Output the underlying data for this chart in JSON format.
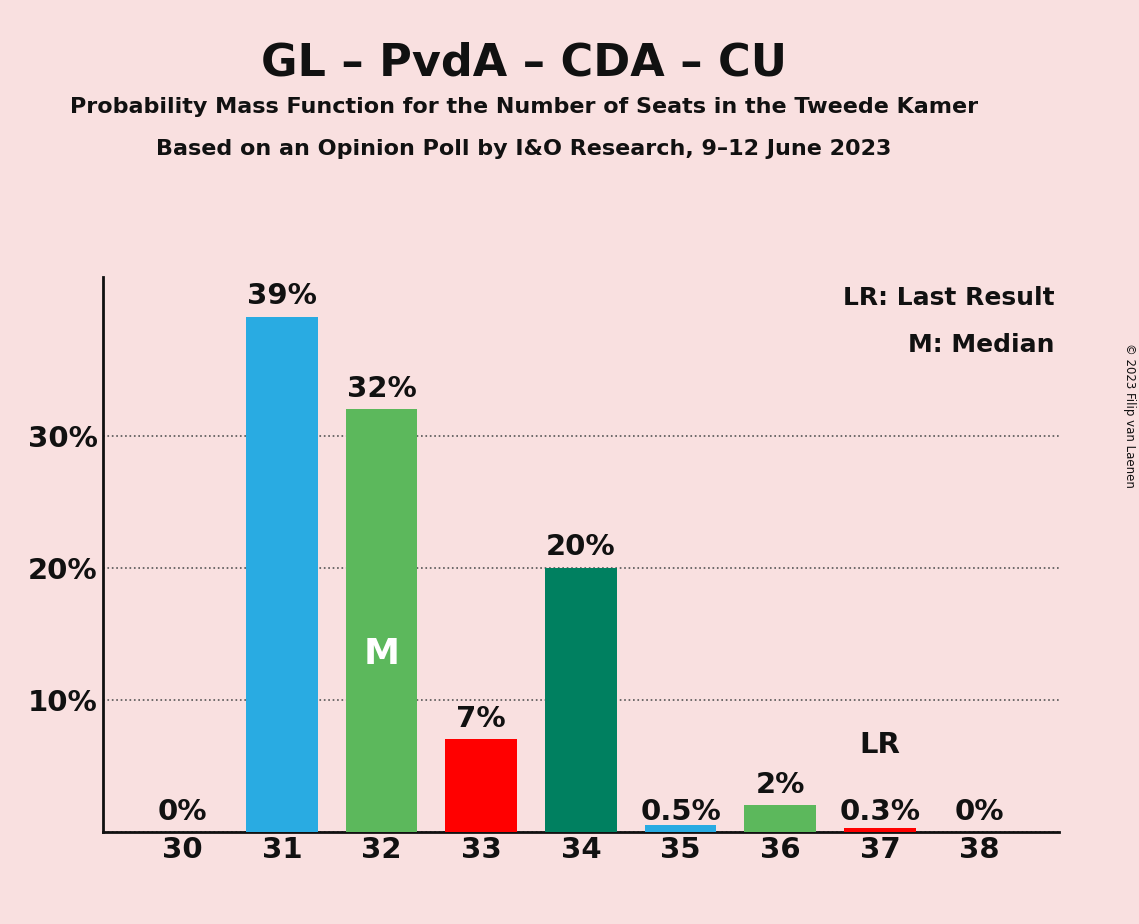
{
  "title": "GL – PvdA – CDA – CU",
  "subtitle1": "Probability Mass Function for the Number of Seats in the Tweede Kamer",
  "subtitle2": "Based on an Opinion Poll by I&O Research, 9–12 June 2023",
  "copyright": "© 2023 Filip van Laenen",
  "seats": [
    30,
    31,
    32,
    33,
    34,
    35,
    36,
    37,
    38
  ],
  "values": [
    0.0,
    39.0,
    32.0,
    7.0,
    20.0,
    0.5,
    2.0,
    0.3,
    0.0
  ],
  "labels": [
    "0%",
    "39%",
    "32%",
    "7%",
    "20%",
    "0.5%",
    "2%",
    "0.3%",
    "0%"
  ],
  "colors": [
    "#29ABE2",
    "#29ABE2",
    "#5CB85C",
    "#FF0000",
    "#008060",
    "#29ABE2",
    "#5CB85C",
    "#FF0000",
    "#29ABE2"
  ],
  "median_seat": 32,
  "lr_seat": 37,
  "background_color": "#F9E0E0",
  "ytick_values": [
    0,
    10,
    20,
    30
  ],
  "ymax": 42,
  "legend_lr": "LR: Last Result",
  "legend_m": "M: Median",
  "annotation_m_bar": 32,
  "annotation_lr_bar": 37
}
